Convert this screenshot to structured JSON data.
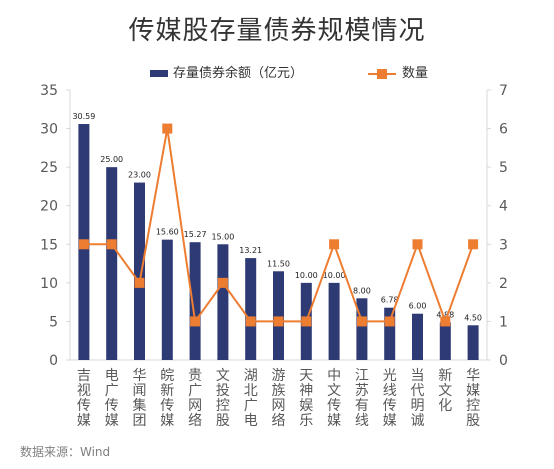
{
  "colors": {
    "bar": "#2e3a74",
    "line": "#ed7d31",
    "axis": "#595959",
    "grid": "#d9d9d9"
  },
  "source": "数据来源：Wind",
  "chart_data": {
    "type": "bar",
    "title": "传媒股存量债券规模情况",
    "categories": [
      "吉视传媒",
      "电广传媒",
      "华闻集团",
      "皖新传媒",
      "贵广网络",
      "文投控股",
      "湖北广电",
      "游族网络",
      "天神娱乐",
      "中文传媒",
      "江苏有线",
      "光线传媒",
      "当代明诚",
      "新文化",
      "华媒控股"
    ],
    "series": [
      {
        "name": "存量债券余额（亿元）",
        "type": "bar",
        "axis": "left",
        "values": [
          30.59,
          25.0,
          23.0,
          15.6,
          15.27,
          15.0,
          13.21,
          11.5,
          10.0,
          10.0,
          8.0,
          6.78,
          6.0,
          4.88,
          4.5
        ],
        "labels": [
          "30.59",
          "25.00",
          "23.00",
          "15.60",
          "15.27",
          "15.00",
          "13.21",
          "11.50",
          "10.00",
          "10.00",
          "8.00",
          "6.78",
          "6.00",
          "4.88",
          "4.50"
        ]
      },
      {
        "name": "数量",
        "type": "line",
        "axis": "right",
        "values": [
          3,
          3,
          2,
          6,
          1,
          2,
          1,
          1,
          1,
          3,
          1,
          1,
          3,
          1,
          3
        ]
      }
    ],
    "ylim_left": [
      0,
      35
    ],
    "yticks_left": [
      "0",
      "5",
      "10",
      "15",
      "20",
      "25",
      "30",
      "35"
    ],
    "ylim_right": [
      0,
      7
    ],
    "yticks_right": [
      "0",
      "1",
      "2",
      "3",
      "4",
      "5",
      "6",
      "7"
    ],
    "legend": "top"
  }
}
